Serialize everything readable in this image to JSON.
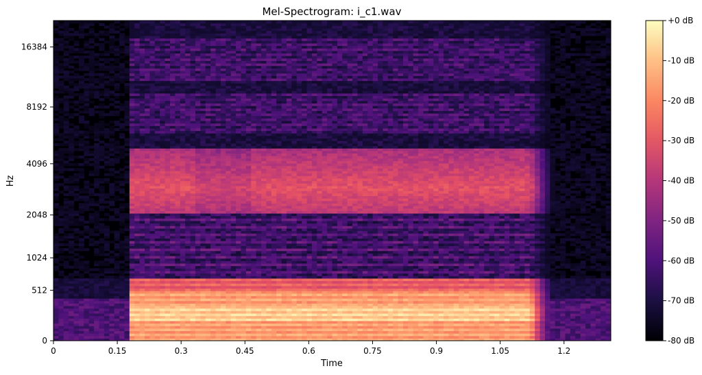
{
  "chart_data": {
    "type": "heatmap",
    "title": "Mel-Spectrogram: i_c1.wav",
    "xlabel": "Time",
    "ylabel": "Hz",
    "xlim": [
      0,
      1.31
    ],
    "x_ticks": [
      0,
      0.15,
      0.3,
      0.45,
      0.6,
      0.75,
      0.9,
      1.05,
      1.2
    ],
    "x_tick_labels": [
      "0",
      "0.15",
      "0.3",
      "0.45",
      "0.6",
      "0.75",
      "0.9",
      "1.05",
      "1.2"
    ],
    "y_scale": "mel",
    "ylim": [
      0,
      22050
    ],
    "y_ticks": [
      0,
      512,
      1024,
      2048,
      4096,
      8192,
      16384
    ],
    "y_tick_labels": [
      "0",
      "512",
      "1024",
      "2048",
      "4096",
      "8192",
      "16384"
    ],
    "colormap": "magma",
    "colorbar": {
      "range": [
        -80,
        0
      ],
      "ticks": [
        0,
        -10,
        -20,
        -30,
        -40,
        -50,
        -60,
        -70,
        -80
      ],
      "tick_labels": [
        "+0 dB",
        "-10 dB",
        "-20 dB",
        "-30 dB",
        "-40 dB",
        "-50 dB",
        "-60 dB",
        "-70 dB",
        "-80 dB"
      ]
    },
    "signal_onset_s": 0.18,
    "signal_offset_s": 1.12,
    "energy_bands_hz": [
      {
        "low": 60,
        "high": 700,
        "level_db": -5
      },
      {
        "low": 2100,
        "high": 5000,
        "level_db": -33
      },
      {
        "low": 6000,
        "high": 9500,
        "level_db": -55
      },
      {
        "low": 11000,
        "high": 18000,
        "level_db": -55
      }
    ]
  }
}
